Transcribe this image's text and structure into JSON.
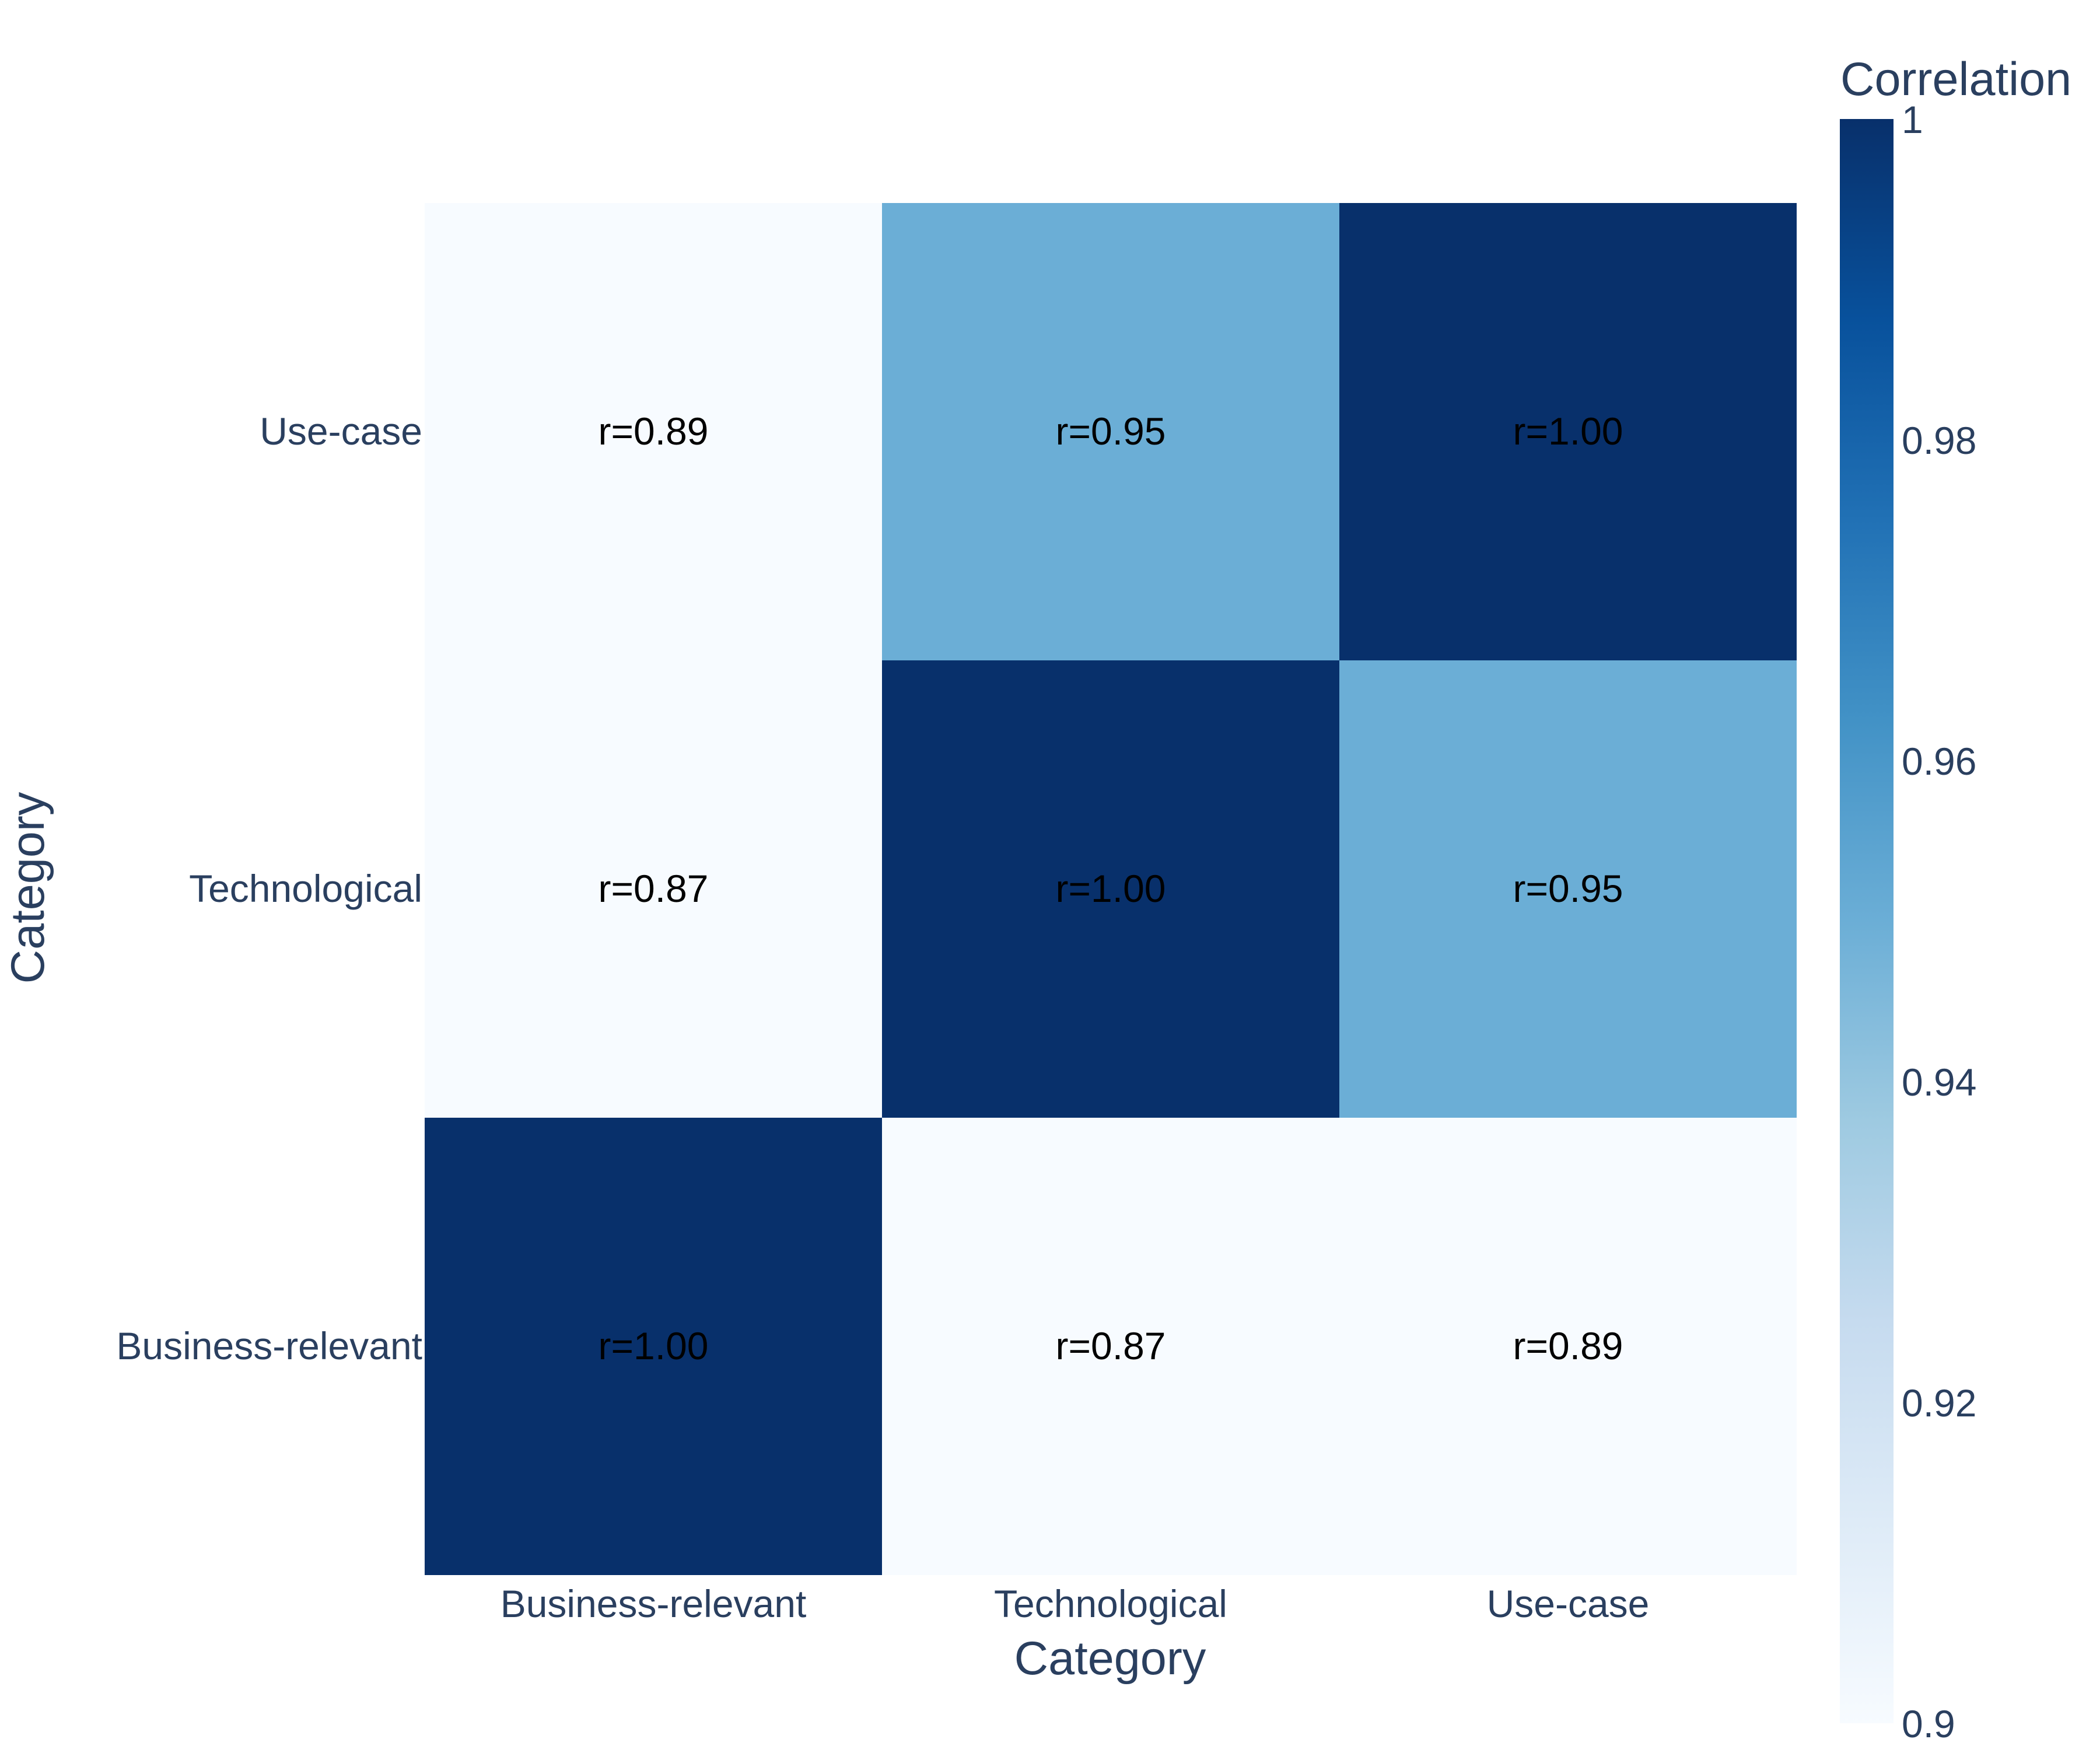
{
  "chart_data": {
    "type": "heatmap",
    "x_categories": [
      "Business-relevant",
      "Technological",
      "Use-case"
    ],
    "y_categories": [
      "Business-relevant",
      "Technological",
      "Use-case"
    ],
    "z": [
      [
        1.0,
        0.87,
        0.89
      ],
      [
        0.87,
        1.0,
        0.95
      ],
      [
        0.89,
        0.95,
        1.0
      ]
    ],
    "annotations": [
      [
        "r=1.00",
        "r=0.87",
        "r=0.89"
      ],
      [
        "r=0.87",
        "r=1.00",
        "r=0.95"
      ],
      [
        "r=0.89",
        "r=0.95",
        "r=1.00"
      ]
    ],
    "xlabel": "Category",
    "ylabel": "Category",
    "colorbar": {
      "title": "Correlation",
      "range": [
        0.9,
        1.0
      ],
      "ticks": [
        0.9,
        0.92,
        0.94,
        0.96,
        0.98,
        1
      ],
      "tick_labels": [
        "0.9",
        "0.92",
        "0.94",
        "0.96",
        "0.98",
        "1"
      ],
      "colorscale": "Blues",
      "colors": [
        "#f7fbff",
        "#deebf7",
        "#c6dbef",
        "#9ecae1",
        "#6baed6",
        "#4292c6",
        "#2171b5",
        "#08519c",
        "#08306b"
      ]
    },
    "colors": {
      "axis_text": "#2a3f5f",
      "annotation_text": "#000000"
    }
  }
}
